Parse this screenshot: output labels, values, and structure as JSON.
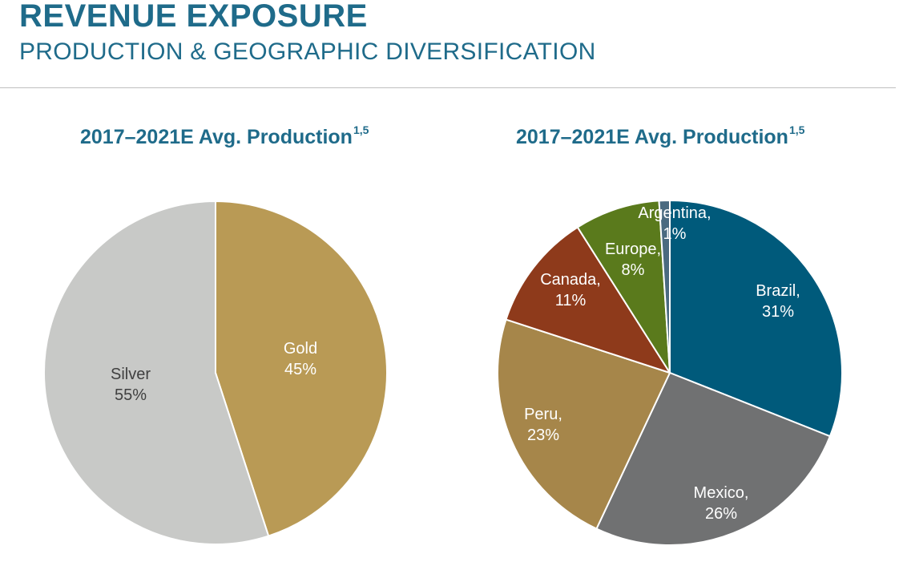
{
  "header": {
    "title": "REVENUE EXPOSURE",
    "subtitle": "PRODUCTION & GEOGRAPHIC DIVERSIFICATION"
  },
  "colors": {
    "accent": "#1f6b8a"
  },
  "chart_data": [
    {
      "type": "pie",
      "title": "2017–2021E Avg. Production",
      "title_superscript": "1,5",
      "slices": [
        {
          "label": "Gold",
          "value_label": "45%",
          "value": 45,
          "color": "#b99a55",
          "text_color": "#ffffff"
        },
        {
          "label": "Silver",
          "value_label": "55%",
          "value": 55,
          "color": "#c8c9c7",
          "text_color": "#404040"
        }
      ]
    },
    {
      "type": "pie",
      "title": "2017–2021E Avg. Production",
      "title_superscript": "1,5",
      "slices": [
        {
          "label": "Brazil,",
          "value_label": "31%",
          "value": 31,
          "color": "#005a7b",
          "text_color": "#ffffff"
        },
        {
          "label": "Mexico,",
          "value_label": "26%",
          "value": 26,
          "color": "#707172",
          "text_color": "#ffffff"
        },
        {
          "label": "Peru,",
          "value_label": "23%",
          "value": 23,
          "color": "#a6864a",
          "text_color": "#ffffff"
        },
        {
          "label": "Canada,",
          "value_label": "11%",
          "value": 11,
          "color": "#8e3a1b",
          "text_color": "#ffffff"
        },
        {
          "label": "Europe,",
          "value_label": "8%",
          "value": 8,
          "color": "#5a7a1c",
          "text_color": "#ffffff"
        },
        {
          "label": "Argentina,",
          "value_label": "1%",
          "value": 1,
          "color": "#4a6a80",
          "text_color": "#ffffff"
        }
      ]
    }
  ]
}
